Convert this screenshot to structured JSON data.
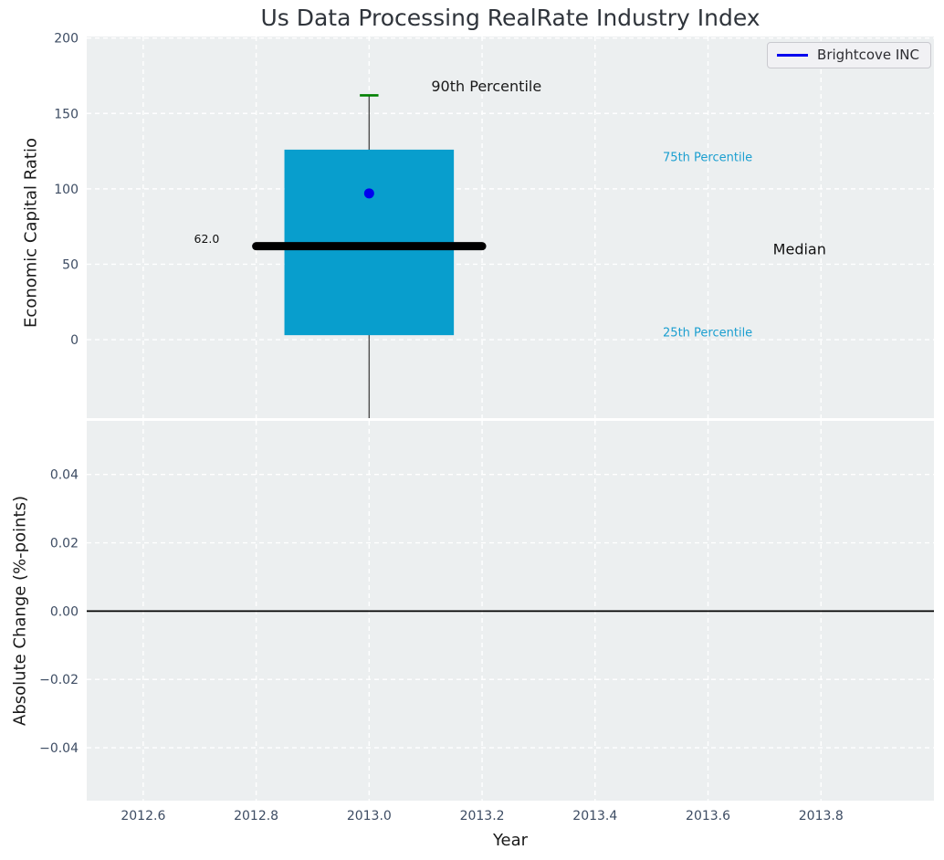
{
  "title": "Us Data Processing RealRate Industry Index",
  "legend": {
    "label": "Brightcove INC",
    "line_color": "#0000ee",
    "position": "upper right"
  },
  "colors": {
    "figure_bg": "#ffffff",
    "axes_bg": "#eceff0",
    "grid": "#ffffff",
    "box_fill": "#089ecd",
    "median_line": "#000000",
    "whisker": "#4d4d4d",
    "cap_90th": "#008000",
    "dot": "#0000ee",
    "zero_line": "#000000",
    "percentile_label": "#1b9fd0",
    "tick_label": "#3d4c63",
    "text": "#1a1a1a"
  },
  "x_axis": {
    "label": "Year",
    "xlim": [
      2012.5,
      2014.0
    ],
    "ticks": [
      2012.6,
      2012.8,
      2013.0,
      2013.2,
      2013.4,
      2013.6,
      2013.8
    ],
    "tick_labels": [
      "2012.6",
      "2012.8",
      "2013.0",
      "2013.2",
      "2013.4",
      "2013.6",
      "2013.8"
    ]
  },
  "chart_data": [
    {
      "type": "boxplot",
      "name": "economic-capital-ratio",
      "title": "Us Data Processing RealRate Industry Index",
      "ylabel": "Economic Capital Ratio",
      "ylim": [
        -52,
        201
      ],
      "yticks": [
        200,
        150,
        100,
        50,
        0
      ],
      "ytick_labels": [
        "200",
        "150",
        "100",
        "50",
        "0"
      ],
      "grid": true,
      "x": 2013.0,
      "box": {
        "p90": 162,
        "p75": 126,
        "median": 62.0,
        "p25": 3,
        "whisker_low_clipped": true
      },
      "company_point": {
        "name": "Brightcove INC",
        "x": 2013.0,
        "value": 97
      },
      "annotations": [
        {
          "id": "p90-label",
          "text": "90th Percentile",
          "x": 2013.11,
          "y": 168,
          "size": 16,
          "color": "#1a1a1a",
          "anchor": "start"
        },
        {
          "id": "p75-label",
          "text": "75th Percentile",
          "x": 2013.52,
          "y": 121,
          "size": 13,
          "color": "#1b9fd0",
          "anchor": "start"
        },
        {
          "id": "median-label",
          "text": "Median",
          "x": 2013.715,
          "y": 60,
          "size": 16,
          "color": "#111111",
          "anchor": "start"
        },
        {
          "id": "p25-label",
          "text": "25th Percentile",
          "x": 2013.52,
          "y": 5,
          "size": 13,
          "color": "#1b9fd0",
          "anchor": "start"
        },
        {
          "id": "median-value-label",
          "text": "62.0",
          "x": 2012.735,
          "y": 67,
          "size": 12.5,
          "color": "#111111",
          "anchor": "end"
        }
      ]
    },
    {
      "type": "line",
      "name": "absolute-change",
      "ylabel": "Absolute Change (%-points)",
      "xlabel": "Year",
      "ylim": [
        -0.0555,
        0.0557
      ],
      "yticks": [
        0.04,
        0.02,
        0.0,
        -0.02,
        -0.04
      ],
      "ytick_labels": [
        "0.04",
        "0.02",
        "0.00",
        "−0.02",
        "−0.04"
      ],
      "grid": true,
      "zero_line": 0.0,
      "series": []
    }
  ]
}
